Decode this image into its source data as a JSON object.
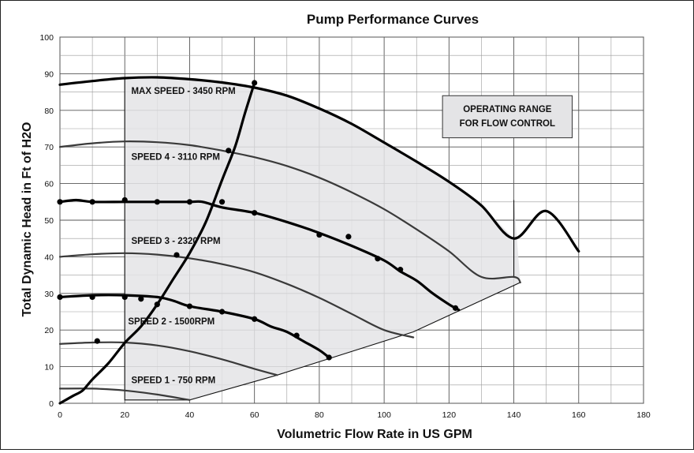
{
  "chart_data": {
    "type": "line",
    "title": "Pump Performance Curves",
    "xlabel": "Volumetric Flow Rate in US GPM",
    "ylabel": "Total Dynamic Head in Ft of H2O",
    "xlim": [
      0,
      180
    ],
    "ylim": [
      0,
      100
    ],
    "x_ticks": [
      "0",
      "20",
      "40",
      "60",
      "80",
      "100",
      "120",
      "140",
      "160",
      "180"
    ],
    "y_ticks": [
      "0",
      "10",
      "20",
      "30",
      "40",
      "50",
      "60",
      "70",
      "80",
      "90",
      "100"
    ],
    "grid": true,
    "operating_range_label": "OPERATING RANGE\nFOR FLOW CONTROL",
    "operating_range": {
      "fill": "#e4e4e6",
      "polygon": [
        [
          20,
          88.6
        ],
        [
          30,
          89
        ],
        [
          40,
          88.5
        ],
        [
          50,
          87.5
        ],
        [
          60,
          86.2
        ],
        [
          70,
          84
        ],
        [
          80,
          80.5
        ],
        [
          90,
          76.3
        ],
        [
          100,
          71.2
        ],
        [
          110,
          66
        ],
        [
          120,
          60.5
        ],
        [
          130,
          54
        ],
        [
          140,
          45
        ],
        [
          140,
          55.5
        ],
        [
          142,
          33
        ],
        [
          109,
          19.5
        ],
        [
          67,
          7.7
        ],
        [
          40,
          0.9
        ],
        [
          20,
          0.9
        ]
      ]
    },
    "series": [
      {
        "name": "MAX SPEED - 3450 RPM",
        "style": "heavy",
        "x": [
          0,
          10,
          20,
          30,
          40,
          50,
          60,
          70,
          80,
          90,
          100,
          110,
          120,
          130,
          140,
          150,
          160
        ],
        "y": [
          87,
          88,
          88.8,
          89,
          88.5,
          87.6,
          86.2,
          84,
          80.5,
          76.3,
          71.2,
          66,
          60.5,
          54,
          45,
          52.5,
          41.5
        ]
      },
      {
        "name": "SPEED 4 - 3110 RPM",
        "style": "medium",
        "x": [
          0,
          10,
          20,
          30,
          40,
          50,
          60,
          70,
          80,
          90,
          100,
          110,
          120,
          130,
          140,
          142
        ],
        "y": [
          70,
          71,
          71.5,
          71.3,
          70.5,
          69,
          67.2,
          64.8,
          61.6,
          57.6,
          53,
          47.5,
          41.5,
          34.5,
          34.5,
          33
        ]
      },
      {
        "name": "SPEED 3 - 2320 RPM",
        "style": "medium",
        "x": [
          0,
          10,
          20,
          30,
          40,
          50,
          60,
          70,
          80,
          90,
          100,
          109
        ],
        "y": [
          40,
          40.7,
          41,
          40.6,
          39.6,
          38,
          35.8,
          32.6,
          28.8,
          24.4,
          20,
          18
        ]
      },
      {
        "name": "SPEED 2 - 1500RPM",
        "style": "medium",
        "x": [
          0,
          10,
          20,
          30,
          40,
          50,
          60,
          67
        ],
        "y": [
          16.2,
          16.6,
          16.6,
          15.8,
          14.2,
          12,
          9.4,
          7.7
        ]
      },
      {
        "name": "SPEED 1 - 750 RPM",
        "style": "medium",
        "x": [
          0,
          10,
          20,
          30,
          40
        ],
        "y": [
          4,
          4,
          3.5,
          2.4,
          0.9
        ]
      },
      {
        "name": "",
        "style": "heavy",
        "x": [
          0,
          5,
          10,
          20,
          30,
          40,
          44,
          50,
          60,
          70,
          80,
          90,
          100,
          105,
          110,
          115,
          120,
          123
        ],
        "y": [
          55,
          55.5,
          55,
          55,
          55,
          55,
          55,
          53.5,
          52,
          49.5,
          46.5,
          43,
          39,
          36,
          33.5,
          30,
          27,
          25.5
        ]
      },
      {
        "name": "",
        "style": "heavy",
        "x": [
          0,
          10,
          20,
          30,
          35,
          40,
          50,
          60,
          65,
          70,
          75,
          80,
          83
        ],
        "y": [
          29,
          29.5,
          29.5,
          29,
          28,
          26.5,
          25,
          23,
          21,
          19.5,
          17,
          14.5,
          12.5
        ]
      },
      {
        "name": "",
        "style": "heavy",
        "x": [
          0,
          4,
          7,
          10,
          15,
          20,
          25,
          30,
          35,
          40,
          45,
          50,
          54,
          57,
          60
        ],
        "y": [
          0,
          2,
          3.5,
          6.5,
          11,
          16.5,
          21,
          27,
          34,
          41,
          49.5,
          61,
          70,
          79,
          87.5
        ]
      }
    ],
    "markers": [
      [
        0,
        29
      ],
      [
        10,
        29
      ],
      [
        20,
        29
      ],
      [
        25,
        28.5
      ],
      [
        30,
        27
      ],
      [
        40,
        26.5
      ],
      [
        50,
        25
      ],
      [
        60,
        23
      ],
      [
        73,
        18.5
      ],
      [
        83,
        12.5
      ],
      [
        0,
        55
      ],
      [
        10,
        55
      ],
      [
        20,
        55.5
      ],
      [
        30,
        55
      ],
      [
        40,
        55
      ],
      [
        50,
        55
      ],
      [
        60,
        52
      ],
      [
        80,
        46
      ],
      [
        89,
        45.5
      ],
      [
        98,
        39.5
      ],
      [
        105,
        36.5
      ],
      [
        122,
        26
      ],
      [
        11.5,
        17
      ],
      [
        36,
        40.5
      ],
      [
        52,
        69
      ],
      [
        60,
        87.5
      ]
    ],
    "curve_labels": [
      {
        "text": "MAX SPEED - 3450 RPM",
        "x": 22,
        "y": 84.5
      },
      {
        "text": "SPEED 4 - 3110 RPM",
        "x": 22,
        "y": 66.5
      },
      {
        "text": "SPEED 3 - 2320 RPM",
        "x": 22,
        "y": 43.5
      },
      {
        "text": "SPEED 2 - 1500RPM",
        "x": 21,
        "y": 21.5
      },
      {
        "text": "SPEED 1 - 750 RPM",
        "x": 22,
        "y": 5.5
      }
    ]
  }
}
